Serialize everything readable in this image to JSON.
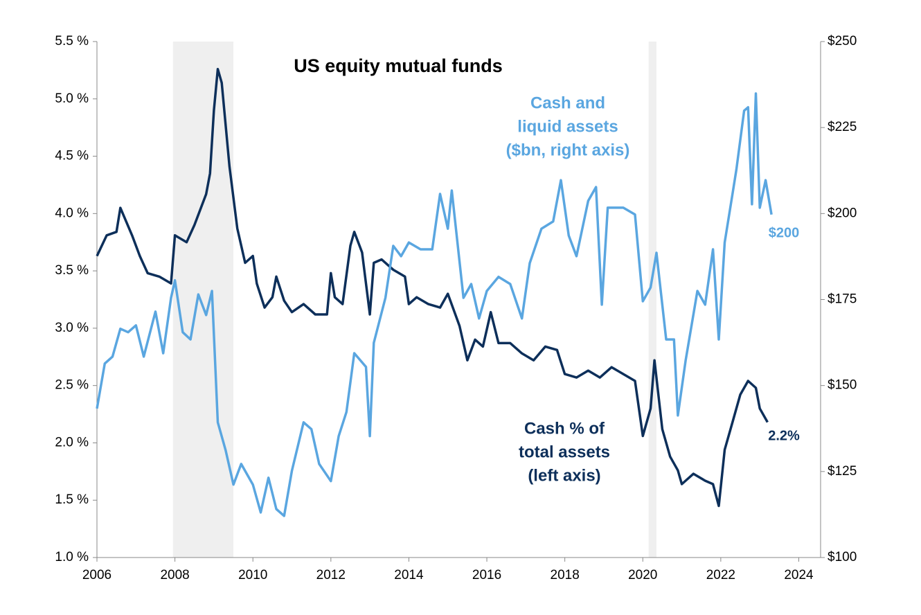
{
  "chart_data": {
    "type": "line",
    "title": "US equity mutual funds",
    "xlim": [
      2006,
      2024.56
    ],
    "xticks": [
      2006,
      2008,
      2010,
      2012,
      2014,
      2016,
      2018,
      2020,
      2022,
      2024
    ],
    "ylim": [
      1.0,
      5.5
    ],
    "yticks": [
      {
        "value": 1.0,
        "label": "1.0 %"
      },
      {
        "value": 1.5,
        "label": "1.5 %"
      },
      {
        "value": 2.0,
        "label": "2.0 %"
      },
      {
        "value": 2.5,
        "label": "2.5 %"
      },
      {
        "value": 3.0,
        "label": "3.0 %"
      },
      {
        "value": 3.5,
        "label": "3.5 %"
      },
      {
        "value": 4.0,
        "label": "4.0 %"
      },
      {
        "value": 4.5,
        "label": "4.5 %"
      },
      {
        "value": 5.0,
        "label": "5.0 %"
      },
      {
        "value": 5.5,
        "label": "5.5 %"
      }
    ],
    "y2lim": [
      100,
      250
    ],
    "y2ticks": [
      {
        "value": 100,
        "label": "$100"
      },
      {
        "value": 125,
        "label": "$125"
      },
      {
        "value": 150,
        "label": "$150"
      },
      {
        "value": 175,
        "label": "$175"
      },
      {
        "value": 200,
        "label": "$200"
      },
      {
        "value": 225,
        "label": "$225"
      },
      {
        "value": 250,
        "label": "$250"
      }
    ],
    "shaded_periods": [
      [
        2007.95,
        2009.5
      ],
      [
        2020.15,
        2020.35
      ]
    ],
    "shade_color": "#efefef",
    "series": [
      {
        "color": "#0d2f5a",
        "axis": "y",
        "x": [
          2006.0,
          2006.25,
          2006.5,
          2006.6,
          2006.9,
          2007.1,
          2007.3,
          2007.6,
          2007.9,
          2008.0,
          2008.3,
          2008.5,
          2008.8,
          2008.9,
          2009.0,
          2009.1,
          2009.2,
          2009.4,
          2009.6,
          2009.8,
          2010.0,
          2010.1,
          2010.3,
          2010.5,
          2010.6,
          2010.8,
          2011.0,
          2011.3,
          2011.6,
          2011.9,
          2012.0,
          2012.1,
          2012.3,
          2012.5,
          2012.6,
          2012.8,
          2013.0,
          2013.1,
          2013.3,
          2013.6,
          2013.9,
          2014.0,
          2014.2,
          2014.5,
          2014.8,
          2015.0,
          2015.3,
          2015.5,
          2015.7,
          2015.9,
          2016.1,
          2016.3,
          2016.6,
          2016.9,
          2017.2,
          2017.5,
          2017.8,
          2018.0,
          2018.3,
          2018.6,
          2018.9,
          2019.2,
          2019.5,
          2019.8,
          2020.0,
          2020.2,
          2020.3,
          2020.5,
          2020.7,
          2020.9,
          2021.0,
          2021.3,
          2021.6,
          2021.8,
          2021.95,
          2022.1,
          2022.3,
          2022.5,
          2022.7,
          2022.9,
          2023.0,
          2023.2
        ],
        "values": [
          3.63,
          3.81,
          3.84,
          4.05,
          3.81,
          3.63,
          3.48,
          3.45,
          3.39,
          3.81,
          3.75,
          3.9,
          4.17,
          4.35,
          4.9,
          5.26,
          5.14,
          4.41,
          3.87,
          3.57,
          3.63,
          3.39,
          3.18,
          3.27,
          3.45,
          3.24,
          3.14,
          3.21,
          3.12,
          3.12,
          3.48,
          3.27,
          3.21,
          3.72,
          3.84,
          3.66,
          3.12,
          3.57,
          3.6,
          3.51,
          3.45,
          3.21,
          3.27,
          3.21,
          3.18,
          3.3,
          3.02,
          2.72,
          2.9,
          2.84,
          3.14,
          2.87,
          2.87,
          2.78,
          2.72,
          2.84,
          2.81,
          2.6,
          2.57,
          2.63,
          2.57,
          2.66,
          2.6,
          2.54,
          2.06,
          2.3,
          2.72,
          2.12,
          1.88,
          1.76,
          1.64,
          1.73,
          1.67,
          1.64,
          1.45,
          1.94,
          2.18,
          2.42,
          2.54,
          2.48,
          2.3,
          2.18
        ]
      },
      {
        "color": "#5aa6e0",
        "axis": "y2",
        "x": [
          2006.0,
          2006.2,
          2006.4,
          2006.6,
          2006.8,
          2007.0,
          2007.2,
          2007.5,
          2007.7,
          2007.9,
          2008.0,
          2008.2,
          2008.4,
          2008.6,
          2008.8,
          2008.95,
          2009.1,
          2009.3,
          2009.5,
          2009.7,
          2010.0,
          2010.2,
          2010.4,
          2010.6,
          2010.8,
          2011.0,
          2011.3,
          2011.5,
          2011.7,
          2012.0,
          2012.2,
          2012.4,
          2012.6,
          2012.9,
          2013.0,
          2013.1,
          2013.4,
          2013.6,
          2013.8,
          2014.0,
          2014.3,
          2014.6,
          2014.8,
          2015.0,
          2015.1,
          2015.4,
          2015.6,
          2015.8,
          2016.0,
          2016.3,
          2016.6,
          2016.9,
          2017.1,
          2017.4,
          2017.7,
          2017.9,
          2018.1,
          2018.3,
          2018.6,
          2018.8,
          2018.95,
          2019.1,
          2019.5,
          2019.8,
          2020.0,
          2020.2,
          2020.35,
          2020.6,
          2020.8,
          2020.9,
          2021.1,
          2021.4,
          2021.6,
          2021.8,
          2021.95,
          2022.1,
          2022.3,
          2022.4,
          2022.6,
          2022.7,
          2022.8,
          2022.9,
          2023.0,
          2023.15,
          2023.3
        ],
        "values": [
          143.3,
          156.4,
          158.4,
          166.5,
          165.5,
          167.5,
          158.4,
          171.5,
          159.4,
          175.5,
          180.6,
          165.5,
          163.4,
          176.5,
          170.5,
          177.5,
          139.3,
          131.2,
          121.2,
          127.2,
          121.2,
          113.1,
          123.2,
          114.1,
          112.1,
          125.2,
          139.3,
          137.3,
          127.2,
          122.2,
          135.3,
          142.3,
          159.4,
          155.4,
          135.3,
          162.4,
          175.5,
          190.6,
          187.6,
          191.6,
          189.6,
          189.6,
          205.7,
          195.6,
          206.7,
          175.5,
          179.5,
          169.5,
          177.5,
          181.6,
          179.5,
          169.5,
          185.6,
          195.6,
          197.7,
          209.7,
          193.6,
          187.6,
          203.7,
          207.7,
          173.5,
          201.7,
          201.7,
          199.7,
          174.5,
          178.5,
          188.6,
          163.4,
          163.4,
          141.3,
          157.4,
          177.5,
          173.5,
          189.6,
          163.4,
          191.6,
          205.7,
          212.8,
          229.9,
          230.9,
          202.7,
          234.9,
          201.7,
          209.7,
          199.7
        ]
      }
    ],
    "annotations": [
      {
        "lines": [
          "Cash and",
          "liquid  assets",
          "($bn, right axis)"
        ],
        "color": "#5aa6e0"
      },
      {
        "lines": [
          "Cash % of",
          "total assets",
          "(left axis)"
        ],
        "color": "#0d2f5a"
      },
      {
        "lines": [
          "$200"
        ],
        "color": "#5aa6e0"
      },
      {
        "lines": [
          "2.2%"
        ],
        "color": "#0d2f5a"
      }
    ]
  }
}
